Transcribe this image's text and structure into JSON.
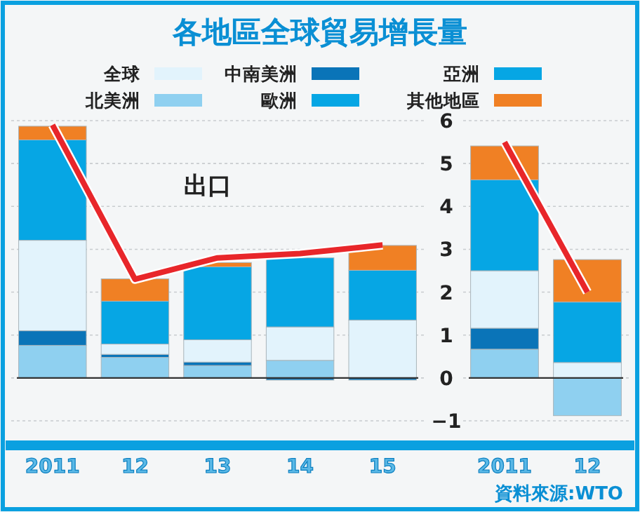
{
  "chart_data": [
    {
      "type": "bar",
      "title": "各地區全球貿易增長量",
      "stacked": true,
      "categories": [
        "2011",
        "12",
        "13",
        "14",
        "15"
      ],
      "ylim": [
        -1,
        6
      ],
      "yticks": [
        {
          "value": -1,
          "label": "−1"
        },
        0,
        1,
        2,
        3,
        4,
        5,
        6
      ],
      "grid": "y",
      "legend": "top",
      "annotations": [
        "出口"
      ],
      "series": [
        {
          "name": "北美洲",
          "color": "#8fd0f0",
          "values": [
            0.76,
            0.48,
            0.29,
            0.41,
            0
          ]
        },
        {
          "name": "中南美洲",
          "color": "#0a74b8",
          "values": [
            0.34,
            0.07,
            0.08,
            -0.05,
            -0.05
          ]
        },
        {
          "name": "全球",
          "color": "#e2f3fc",
          "values": [
            2.11,
            0.24,
            0.52,
            0.78,
            1.35
          ]
        },
        {
          "name": "亞洲",
          "color": "#06a6e4",
          "values": [
            null,
            null,
            null,
            null,
            null
          ]
        },
        {
          "name": "歐洲",
          "color": "#06a6e4",
          "values": [
            2.34,
            1.0,
            1.7,
            1.61,
            1.16
          ]
        },
        {
          "name": "其他地區",
          "color": "#f08024",
          "values": [
            0.32,
            0.52,
            0.1,
            0,
            0.58
          ]
        },
        {
          "type": "line",
          "color": "#e8262a",
          "values": [
            5.9,
            2.3,
            2.8,
            2.9,
            3.1
          ]
        }
      ]
    },
    {
      "type": "bar",
      "stacked": true,
      "categories": [
        "2011",
        "12"
      ],
      "ylim": [
        -1,
        6
      ],
      "yticks": [
        -1,
        0,
        1,
        2,
        3,
        4,
        5,
        6
      ],
      "grid": "y",
      "tick_labels": "x",
      "annotations": [
        "資料來源:WTO"
      ],
      "series": [
        {
          "color": "#8fd0f0",
          "values": [
            0.67,
            -0.88
          ]
        },
        {
          "color": "#0a74b8",
          "values": [
            0.49,
            0
          ]
        },
        {
          "color": "#e2f3fc",
          "values": [
            1.34,
            0.36
          ]
        },
        {
          "color": "#06a6e4",
          "values": [
            2.12,
            1.41
          ]
        },
        {
          "color": "#f08024",
          "values": [
            0.79,
            0.99
          ]
        },
        {
          "type": "line",
          "color": "#e8262a",
          "values": [
            5.5,
            2.0
          ]
        }
      ]
    }
  ]
}
